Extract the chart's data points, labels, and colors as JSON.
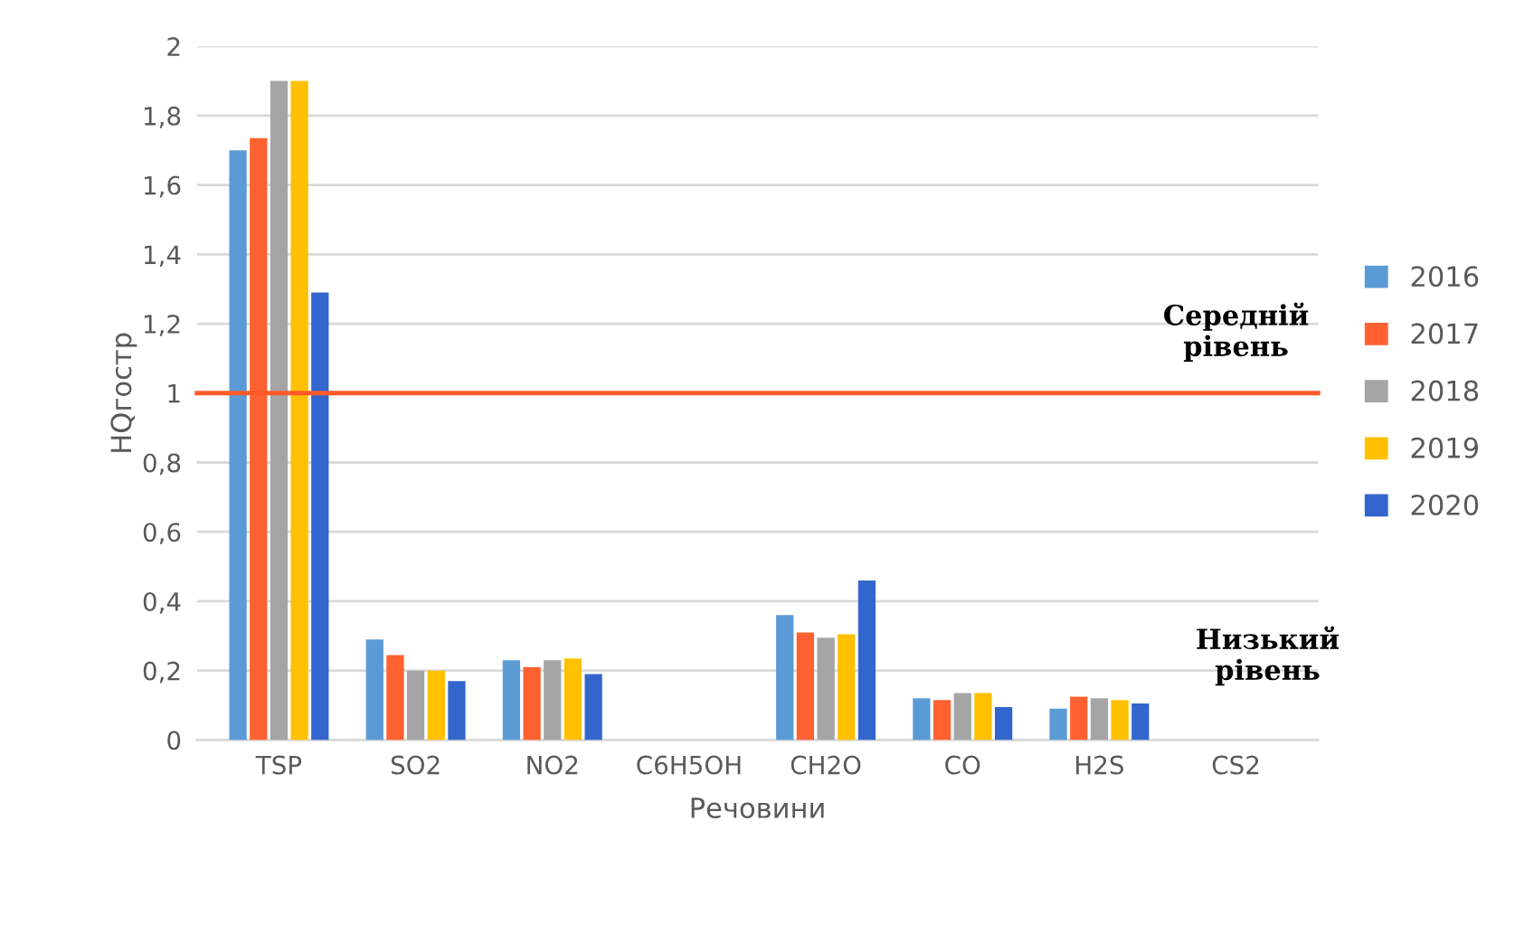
{
  "chart_data": {
    "type": "bar",
    "xlabel": "Речовини",
    "ylabel": "HQгостр",
    "categories": [
      "TSP",
      "SO2",
      "NO2",
      "C6H5OH",
      "CH2O",
      "CO",
      "H2S",
      "CS2"
    ],
    "series": [
      {
        "name": "2016",
        "color": "#5b9bd5",
        "values": [
          1.7,
          0.29,
          0.23,
          null,
          0.36,
          0.12,
          0.09,
          null
        ]
      },
      {
        "name": "2017",
        "color": "#ff6131",
        "values": [
          1.735,
          0.245,
          0.21,
          null,
          0.31,
          0.115,
          0.125,
          null
        ]
      },
      {
        "name": "2018",
        "color": "#a5a5a5",
        "values": [
          1.9,
          0.2,
          0.23,
          null,
          0.295,
          0.135,
          0.12,
          null
        ]
      },
      {
        "name": "2019",
        "color": "#ffc000",
        "values": [
          1.9,
          0.2,
          0.235,
          null,
          0.305,
          0.135,
          0.115,
          null
        ]
      },
      {
        "name": "2020",
        "color": "#3366cc",
        "values": [
          1.29,
          0.17,
          0.19,
          null,
          0.46,
          0.095,
          0.105,
          null
        ]
      }
    ],
    "ylim": [
      0,
      2
    ],
    "yticks": [
      0,
      {
        "value": 0.2,
        "label": "0,2"
      },
      {
        "value": 0.4,
        "label": "0,4"
      },
      {
        "value": 0.6,
        "label": "0,6"
      },
      {
        "value": 0.8,
        "label": "0,8"
      },
      1,
      {
        "value": 1.2,
        "label": "1,2"
      },
      {
        "value": 1.4,
        "label": "1,4"
      },
      {
        "value": 1.6,
        "label": "1,6"
      },
      {
        "value": 1.8,
        "label": "1,8"
      },
      2
    ],
    "ref_lines": [
      {
        "axis": "y",
        "value": 1,
        "label": "Середній рівень",
        "color": "#ff5a2a"
      }
    ],
    "annotations": [
      "Низький рівень"
    ],
    "grid": "y",
    "legend": "right"
  }
}
